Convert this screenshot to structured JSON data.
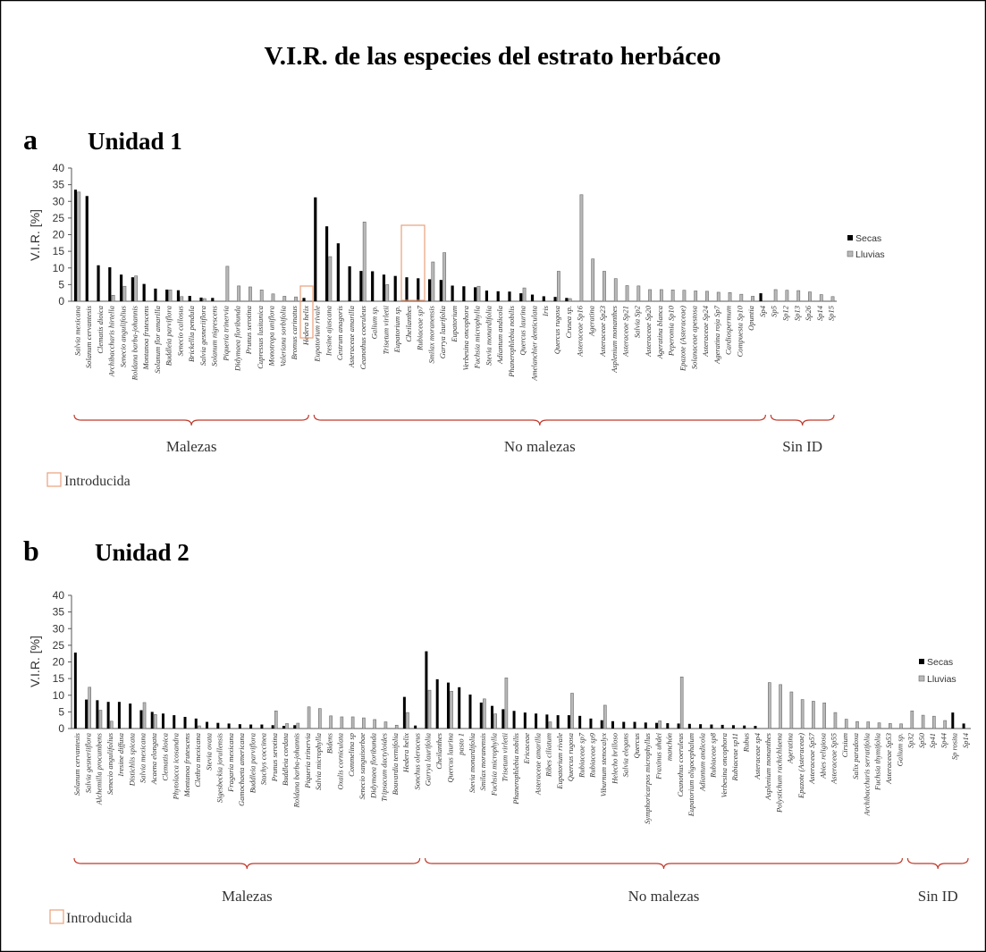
{
  "title": "V.I.R. de las especies del estrato herbáceo",
  "legend": {
    "series": [
      "Secas",
      "Lluvias"
    ],
    "introduced_label": "Introducida"
  },
  "colors": {
    "secas": "#000000",
    "lluvias": "#b8b8b8",
    "bracket": "#c0392b",
    "introduced_box": "#e8a07a",
    "border": "#000000"
  },
  "chart_data": [
    {
      "type": "bar",
      "panel_letter": "a",
      "panel_title": "Unidad 1",
      "ylabel": "V.I.R. [%]",
      "ylim": [
        0,
        40
      ],
      "yticks": [
        0,
        5,
        10,
        15,
        20,
        25,
        30,
        35,
        40
      ],
      "categories": [
        "Salvia mexicana",
        "Solanum cervantesis",
        "Clematis dioica",
        "Archibaccharis hirtella",
        "Senecio angulifolius",
        "Roldana barba-johannis",
        "Montanoa frutescens",
        "Solanum flor amarilla",
        "Buddleia parviflora",
        "Senecio callosus",
        "Brickellia pendula",
        "Salvia gesneriiflora",
        "Solanum nigrescens",
        "Piqueria trinervia",
        "Didymaea floribunda",
        "Prunus serotina",
        "Cupressus lusitanica",
        "Monotropa uniflora",
        "Valeriana sorbifolia",
        "Bromus carinatus",
        "Hedera helix",
        "Eupatorium rivale",
        "Iresine ajuscana",
        "Cestrum anagoris",
        "Asteraceae amarilla",
        "Ceanothus coeruleus",
        "Galium sp.",
        "Trisetum virletii",
        "Eupatorium sp.",
        "Cheilanthes",
        "Rubiaceae sp7",
        "Smilax moranensis",
        "Garrya laurifolia",
        "Eupatorium",
        "Verbesina oncophora",
        "Fuchsia microphylla",
        "Stevia monardifolia",
        "Adiantum andicola",
        "Phanerophlebia nobilis",
        "Quercus laurina",
        "Amelanchier denticulata",
        "Iris",
        "Quercus rugosa",
        "Crusea sp.",
        "Asteraceae Sp16",
        "Ageratina",
        "Asteraceae Sp23",
        "Asplenium monanthes",
        "Asteraceae Sp21",
        "Salvia Sp2",
        "Asteraceae Sp20",
        "Ageratina blanca",
        "Peperomia Sp10",
        "Epazote (Asteraceae)",
        "Solanaceae apestosa",
        "Asteraceae Sp24",
        "Ageratina roja Sp7",
        "Cardiospermum",
        "Compuesta Sp10",
        "Opuntia",
        "Sp4",
        "Sp5",
        "Sp12",
        "Sp13",
        "Sp26",
        "Sp14",
        "Sp15"
      ],
      "series": [
        {
          "name": "Secas",
          "values": [
            33.5,
            31.6,
            10.8,
            10.2,
            8,
            7.2,
            5.2,
            3.8,
            3.5,
            3.3,
            1.6,
            1.1,
            1,
            0,
            0,
            0,
            0,
            0,
            0,
            0,
            1,
            31.2,
            22.5,
            17.4,
            10.5,
            9.1,
            9,
            8,
            7.6,
            7.2,
            6.9,
            6.6,
            6.4,
            4.7,
            4.5,
            4.2,
            3.2,
            3,
            2.9,
            2.4,
            2,
            1.5,
            1.3,
            1,
            0,
            0,
            0,
            0,
            0,
            0,
            0,
            0,
            0,
            0,
            0,
            0,
            0,
            0,
            0,
            0,
            2.4,
            0,
            0,
            0,
            0,
            0,
            0
          ]
        },
        {
          "name": "Lluvias",
          "values": [
            32.8,
            0,
            0,
            1.8,
            4.5,
            7.6,
            0,
            0,
            3.4,
            1.4,
            0,
            0.8,
            0,
            10.5,
            4.6,
            4.3,
            3.4,
            2.2,
            1.5,
            1.3,
            0,
            0,
            13.4,
            0,
            0,
            23.8,
            0,
            5,
            0,
            0,
            0,
            11.8,
            14.6,
            0,
            0,
            4.5,
            0,
            0,
            0,
            4,
            0,
            0,
            9,
            0.8,
            32,
            12.7,
            9,
            6.8,
            4.7,
            4.6,
            3.5,
            3.5,
            3.4,
            3.3,
            3.1,
            3,
            2.7,
            2.6,
            2.1,
            1.5,
            0,
            3.5,
            3.3,
            3.2,
            2.8,
            2,
            1.4
          ]
        }
      ],
      "introduced": [
        "Hedera helix"
      ],
      "groups": [
        {
          "label": "Malezas",
          "first": 0,
          "last": 20
        },
        {
          "label": "No malezas",
          "first": 21,
          "last": 60
        },
        {
          "label": "Sin ID",
          "first": 61,
          "last": 66
        }
      ]
    },
    {
      "type": "bar",
      "panel_letter": "b",
      "panel_title": "Unidad 2",
      "ylabel": "V.I.R. [%]",
      "ylim": [
        0,
        40
      ],
      "yticks": [
        0,
        5,
        10,
        15,
        20,
        25,
        30,
        35,
        40
      ],
      "categories": [
        "Solanum cervantesis",
        "Salvia gesneriiflora",
        "Alchemilla procumbens",
        "Senecio angulifolius",
        "Iresine diffusa",
        "Distichlis spicata",
        "Salvia mexicana",
        "Acaena elongata",
        "Clematis dioica",
        "Phytolacca icosandra",
        "Montanoa frutescens",
        "Clethra mexicana",
        "Stevia ovata",
        "Sigesbeckia jorullensis",
        "Fragaria mexicana",
        "Gamochaeta americana",
        "Buddleia parviflora",
        "Stachys coccinea",
        "Prunus serotina",
        "Buddleia cordata",
        "Roldana barba-johannis",
        "Piqueria trinervia",
        "Salvia microphylla",
        "Bidens",
        "Oxalis corniculata",
        "Commelina sp",
        "Senecio sanguisorbae",
        "Didymaea floribunda",
        "Tripsacum dactyloides",
        "Bouvardia ternifolia",
        "Hedera helix",
        "Sonchus oleraceus",
        "Garrya laurifolia",
        "Cheilanthes",
        "Quercus laurina",
        "pasto 1",
        "Stevia monardifolia",
        "Smilax moranensis",
        "Fuchsia microphylla",
        "Trisetum virletii",
        "Phanerophlebia nobilis",
        "Ericaceae",
        "Asteraceae amarilla",
        "Ribes ciliatum",
        "Eupatorium rivale",
        "Quercus rugosa",
        "Rubiaceae sp7",
        "Rubiaceae sp9",
        "Viburnum stenocalyx",
        "Helecho brilloso",
        "Salvia elegans",
        "Quercus",
        "Symphoricarpos microphyllus",
        "Fraxinus uhdei",
        "manchón",
        "Ceanothus coeruleus",
        "Eupatorium oligocephalum",
        "Adiantum andicola",
        "Rubiaceae sp8",
        "Verbesina oncophora",
        "Rubiaceae sp11",
        "Rubus",
        "Asteraceae sp4",
        "Asplenium monanthes",
        "Polystichum rachichlaena",
        "Ageratina",
        "Epazote (Asteraceae)",
        "Asteraceae Sp57",
        "Abies religiosa",
        "Asteraceae Sp55",
        "Cirsium",
        "Salix paradoxa",
        "Archibaccharis serratifolia",
        "Fuchsia thymifolia",
        "Asteraceae Sp53",
        "Galium sp.",
        "Sp32",
        "Sp50",
        "Sp41",
        "Sp44",
        "Sp rosita",
        "Sp14"
      ],
      "series": [
        {
          "name": "Secas",
          "values": [
            22.8,
            8.7,
            8.5,
            8,
            8,
            7.5,
            5.5,
            5,
            4.5,
            4,
            3.5,
            3,
            2,
            1.7,
            1.5,
            1.3,
            1.2,
            1.2,
            1,
            0.8,
            1,
            0,
            0,
            0,
            0,
            0,
            0,
            0,
            0,
            0,
            9.5,
            0.9,
            23.2,
            14.8,
            13.8,
            12.4,
            10.2,
            7.8,
            6.8,
            5.8,
            5.3,
            4.8,
            4.5,
            4.2,
            4,
            4,
            3.8,
            3,
            2.5,
            2.2,
            2,
            2,
            1.8,
            1.7,
            1.6,
            1.5,
            1.4,
            1.3,
            1.2,
            1.1,
            1,
            0.9,
            0.8,
            0,
            0,
            0,
            0,
            0,
            0,
            0,
            0,
            0,
            0,
            0,
            0,
            0,
            0,
            0,
            0,
            0,
            4.8,
            1.5
          ]
        },
        {
          "name": "Lluvias",
          "values": [
            0,
            12.4,
            5.5,
            2.2,
            0,
            0,
            7.8,
            4.2,
            0,
            0,
            0,
            0.8,
            0,
            0,
            0,
            0,
            0,
            0,
            5.3,
            1.5,
            1.6,
            6.5,
            6,
            3.8,
            3.5,
            3.5,
            3.2,
            2.7,
            2,
            1,
            4.8,
            0,
            11.5,
            0,
            11.2,
            0,
            0,
            8.9,
            4.4,
            15.2,
            0,
            0,
            0,
            2,
            0,
            10.6,
            0,
            0,
            7,
            0,
            0,
            0,
            0,
            2.3,
            0,
            15.5,
            0,
            0,
            0,
            0,
            0,
            0,
            0,
            13.8,
            13.2,
            11,
            8.7,
            8.2,
            7.7,
            4.8,
            2.8,
            2.1,
            2,
            1.7,
            1.5,
            1.4,
            5.3,
            4,
            3.7,
            2.4,
            0,
            0
          ]
        }
      ],
      "introduced": [
        "Hedera helix",
        "Sonchus oleraceus"
      ],
      "groups": [
        {
          "label": "Malezas",
          "first": 0,
          "last": 31
        },
        {
          "label": "No malezas",
          "first": 32,
          "last": 75
        },
        {
          "label": "Sin ID",
          "first": 76,
          "last": 81
        }
      ]
    }
  ]
}
